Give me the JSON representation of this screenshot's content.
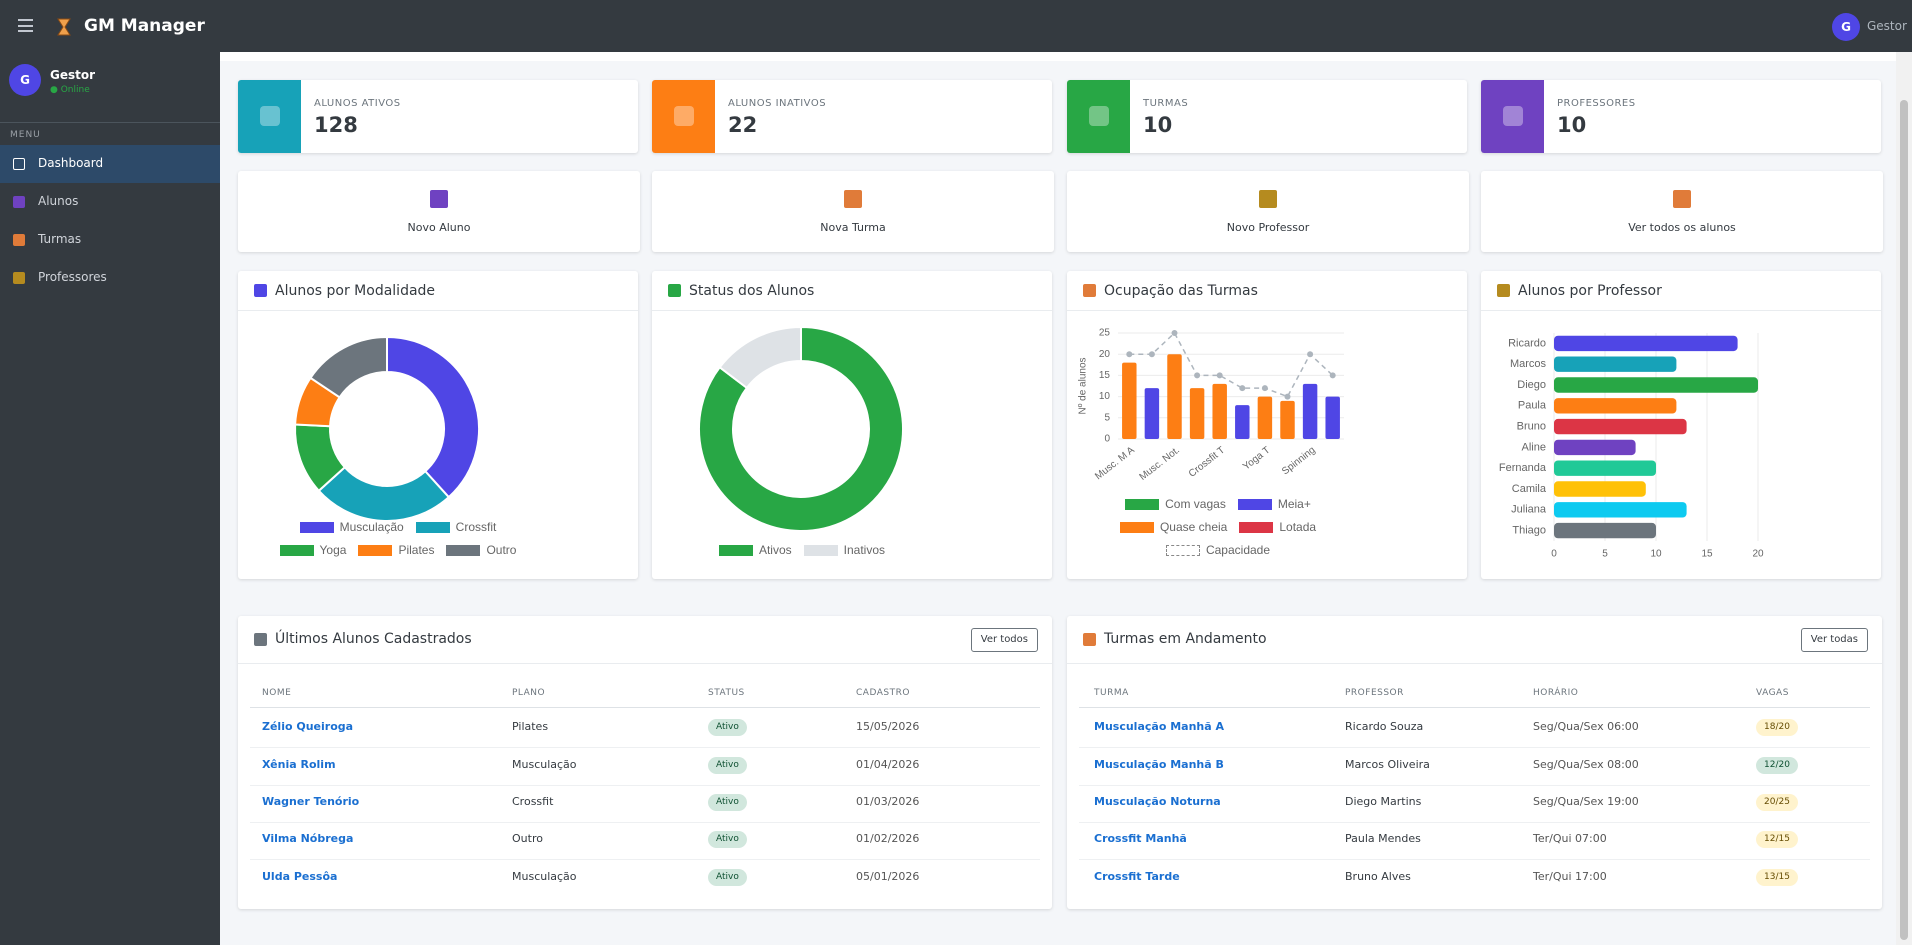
{
  "header": {
    "title": "GM Manager",
    "avatar": "G",
    "user": "Gestor"
  },
  "sidebar": {
    "avatar": "G",
    "name": "Gestor",
    "status": "● Online",
    "menu_label": "MENU",
    "menu": [
      "Dashboard",
      "Alunos",
      "Turmas",
      "Professores"
    ],
    "active": 0
  },
  "stats": [
    {
      "label": "ALUNOS ATIVOS",
      "value": 128,
      "color": "#17a2b8"
    },
    {
      "label": "ALUNOS INATIVOS",
      "value": 22,
      "color": "#fd7e14"
    },
    {
      "label": "TURMAS",
      "value": 10,
      "color": "#28a745"
    },
    {
      "label": "PROFESSORES",
      "value": 10,
      "color": "#6f42c1"
    }
  ],
  "actions": [
    "Novo Aluno",
    "Nova Turma",
    "Novo Professor",
    "Ver todos os alunos"
  ],
  "chart_data": [
    {
      "type": "doughnut",
      "title": "Alunos por Modalidade",
      "categories": [
        "Musculação",
        "Crossfit",
        "Yoga",
        "Pilates",
        "Outro"
      ],
      "values": [
        49,
        32,
        16,
        11,
        20
      ],
      "colors": [
        "#4f46e5",
        "#17a2b8",
        "#28a745",
        "#fd7e14",
        "#6c757d"
      ]
    },
    {
      "type": "doughnut",
      "title": "Status dos Alunos",
      "categories": [
        "Ativos",
        "Inativos"
      ],
      "values": [
        128,
        22
      ],
      "colors": [
        "#28a745",
        "#dee2e6"
      ]
    },
    {
      "type": "bar",
      "title": "Ocupação das Turmas",
      "categories": [
        "Musc. M A",
        null,
        "Musc. Not.",
        null,
        "Crossfit T",
        null,
        "Yoga T",
        null,
        "Spinning",
        null
      ],
      "values": [
        18,
        12,
        20,
        12,
        13,
        8,
        10,
        9,
        13,
        10
      ],
      "colors": [
        "#fd7e14",
        "#4f46e5",
        "#fd7e14",
        "#fd7e14",
        "#fd7e14",
        "#4f46e5",
        "#fd7e14",
        "#fd7e14",
        "#4f46e5",
        "#4f46e5"
      ],
      "legend": [
        {
          "name": "Com vagas",
          "color": "#28a745"
        },
        {
          "name": "Meia+",
          "color": "#4f46e5"
        },
        {
          "name": "Quase cheia",
          "color": "#fd7e14"
        },
        {
          "name": "Lotada",
          "color": "#dc3545"
        }
      ],
      "line": {
        "name": "Capacidade",
        "color": "#adb5bd",
        "values": [
          20,
          20,
          25,
          15,
          15,
          12,
          12,
          10,
          20,
          15
        ]
      },
      "ylabel": "Nº de alunos",
      "ylim": [
        0,
        25
      ],
      "yticks": [
        0,
        5,
        10,
        15,
        20,
        25
      ],
      "grid": true
    },
    {
      "type": "bar",
      "orientation": "horizontal",
      "title": "Alunos por Professor",
      "categories": [
        "Ricardo",
        "Marcos",
        "Diego",
        "Paula",
        "Bruno",
        "Aline",
        "Fernanda",
        "Camila",
        "Juliana",
        "Thiago"
      ],
      "values": [
        18,
        12,
        20,
        12,
        13,
        8,
        10,
        9,
        13,
        10
      ],
      "colors": [
        "#4f46e5",
        "#17a2b8",
        "#28a745",
        "#fd7e14",
        "#dc3545",
        "#6f42c1",
        "#20c997",
        "#ffc107",
        "#0dcaf0",
        "#6c757d"
      ],
      "xlim": [
        0,
        20
      ],
      "xticks": [
        0,
        5,
        10,
        15,
        20
      ],
      "grid": true
    }
  ],
  "tables": [
    {
      "title": "Últimos Alunos Cadastrados",
      "button": "Ver todos",
      "columns": [
        "NOME",
        "PLANO",
        "STATUS",
        "CADASTRO"
      ],
      "rows": [
        [
          "Zélio Queiroga",
          "Pilates",
          "Ativo",
          "15/05/2026"
        ],
        [
          "Xênia Rolim",
          "Musculação",
          "Ativo",
          "01/04/2026"
        ],
        [
          "Wagner Tenório",
          "Crossfit",
          "Ativo",
          "01/03/2026"
        ],
        [
          "Vilma Nóbrega",
          "Outro",
          "Ativo",
          "01/02/2026"
        ],
        [
          "Ulda Pessôa",
          "Musculação",
          "Ativo",
          "05/01/2026"
        ]
      ],
      "badge_column": 2,
      "badge_colors": [
        "#d1e7dd",
        "#d1e7dd",
        "#d1e7dd",
        "#d1e7dd",
        "#d1e7dd"
      ]
    },
    {
      "title": "Turmas em Andamento",
      "button": "Ver todas",
      "columns": [
        "TURMA",
        "PROFESSOR",
        "HORÁRIO",
        "VAGAS"
      ],
      "rows": [
        [
          "Musculação Manhã A",
          "Ricardo Souza",
          "Seg/Qua/Sex 06:00",
          "18/20"
        ],
        [
          "Musculação Manhã B",
          "Marcos Oliveira",
          "Seg/Qua/Sex 08:00",
          "12/20"
        ],
        [
          "Musculação Noturna",
          "Diego Martins",
          "Seg/Qua/Sex 19:00",
          "20/25"
        ],
        [
          "Crossfit Manhã",
          "Paula Mendes",
          "Ter/Qui 07:00",
          "12/15"
        ],
        [
          "Crossfit Tarde",
          "Bruno Alves",
          "Ter/Qui 17:00",
          "13/15"
        ]
      ],
      "badge_column": 3,
      "badge_colors": [
        "#fff3cd",
        "#d1e7dd",
        "#fff3cd",
        "#fff3cd",
        "#fff3cd"
      ]
    }
  ]
}
